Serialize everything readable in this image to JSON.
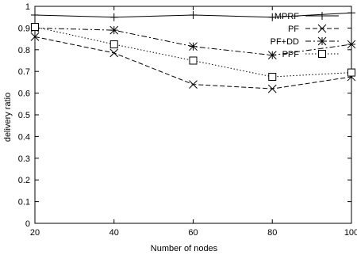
{
  "chart_data": {
    "type": "line",
    "xlabel": "Number of nodes",
    "ylabel": "delivery ratio",
    "x": [
      20,
      40,
      60,
      80,
      100
    ],
    "xticks": [
      "20",
      "40",
      "60",
      "80",
      "100"
    ],
    "yticks": [
      "0",
      "0.1",
      "0.2",
      "0.3",
      "0.4",
      "0.5",
      "0.6",
      "0.7",
      "0.8",
      "0.9",
      "1"
    ],
    "xlim": [
      20,
      100
    ],
    "ylim": [
      0,
      1
    ],
    "grid": false,
    "legend_position": "top-right",
    "series": [
      {
        "name": "MPRF",
        "marker": "plus",
        "dash": "solid",
        "values": [
          0.96,
          0.95,
          0.96,
          0.95,
          0.97
        ]
      },
      {
        "name": "PF",
        "marker": "cross",
        "dash": "dashed",
        "values": [
          0.86,
          0.785,
          0.64,
          0.62,
          0.675
        ]
      },
      {
        "name": "PF+DD",
        "marker": "star",
        "dash": "dashdot",
        "values": [
          0.9,
          0.89,
          0.815,
          0.775,
          0.825
        ]
      },
      {
        "name": "PPF",
        "marker": "square",
        "dash": "dotted",
        "values": [
          0.905,
          0.825,
          0.75,
          0.675,
          0.695
        ]
      }
    ]
  }
}
